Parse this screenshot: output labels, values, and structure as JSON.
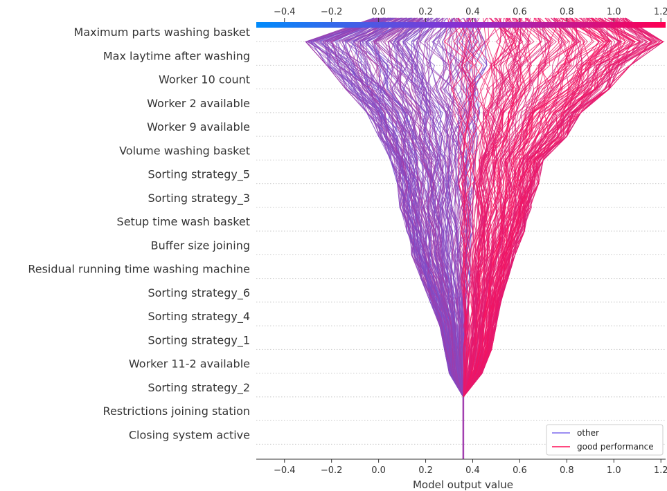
{
  "chart_data": {
    "type": "line",
    "subtype": "decision-plot",
    "xlabel": "Model output value",
    "xlim": [
      -0.52,
      1.22
    ],
    "xticks": [
      -0.4,
      -0.2,
      0.0,
      0.2,
      0.4,
      0.6,
      0.8,
      1.0,
      1.2
    ],
    "xtick_labels": [
      "−0.4",
      "−0.2",
      "0.0",
      "0.2",
      "0.4",
      "0.6",
      "0.8",
      "1.0",
      "1.2"
    ],
    "base_value": 0.36,
    "features": [
      "Maximum parts washing basket",
      "Max laytime after washing",
      "Worker 10 count",
      "Worker 2 available",
      "Worker 9 available",
      "Volume washing basket",
      "Sorting strategy_5",
      "Sorting strategy_3",
      "Setup time wash basket",
      "Buffer size joining",
      "Residual running time washing machine",
      "Sorting strategy_6",
      "Sorting strategy_4",
      "Sorting strategy_1",
      "Worker 11-2 available",
      "Sorting strategy_2",
      "Restrictions joining station",
      "Closing system active"
    ],
    "series": [
      {
        "name": "other",
        "color": "#7b68ee",
        "envelope_min": [
          -0.02,
          -0.31,
          -0.22,
          -0.14,
          -0.05,
          0.0,
          0.05,
          0.08,
          0.09,
          0.12,
          0.14,
          0.18,
          0.22,
          0.26,
          0.28,
          0.3,
          0.36,
          0.36,
          0.36
        ],
        "envelope_max": [
          0.42,
          0.45,
          0.46,
          0.44,
          0.43,
          0.42,
          0.41,
          0.41,
          0.4,
          0.4,
          0.39,
          0.39,
          0.38,
          0.38,
          0.37,
          0.37,
          0.36,
          0.36,
          0.36
        ]
      },
      {
        "name": "good performance",
        "color": "#ff0d57",
        "envelope_min": [
          0.3,
          0.28,
          0.3,
          0.31,
          0.32,
          0.33,
          0.34,
          0.34,
          0.35,
          0.35,
          0.35,
          0.35,
          0.36,
          0.36,
          0.36,
          0.36,
          0.36,
          0.36,
          0.36
        ],
        "envelope_max": [
          1.05,
          1.21,
          1.07,
          0.98,
          0.86,
          0.8,
          0.7,
          0.68,
          0.65,
          0.62,
          0.58,
          0.55,
          0.52,
          0.5,
          0.48,
          0.44,
          0.36,
          0.36,
          0.36
        ]
      }
    ],
    "colorbar": {
      "from": "#008bfb",
      "mid": "#7f3fb8",
      "to": "#ff0052"
    },
    "legend": {
      "position": "bottom-right",
      "entries": [
        "other",
        "good performance"
      ]
    },
    "grid": "horizontal-dotted"
  }
}
